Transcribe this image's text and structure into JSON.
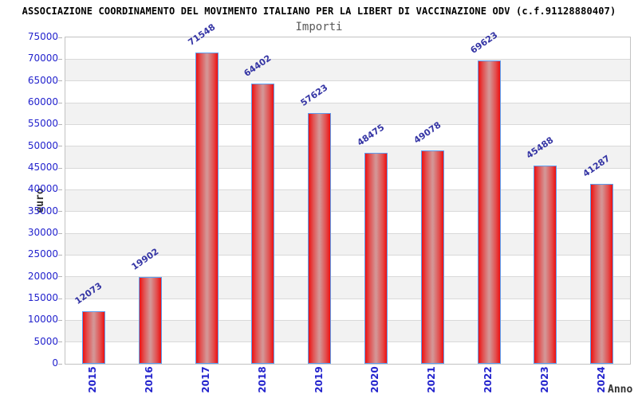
{
  "header": {
    "title": "ASSOCIAZIONE COORDINAMENTO DEL MOVIMENTO ITALIANO PER LA LIBERT DI VACCINAZIONE ODV (c.f.91128880407)"
  },
  "chart_data": {
    "type": "bar",
    "title": "Importi",
    "categories": [
      "2015",
      "2016",
      "2017",
      "2018",
      "2019",
      "2020",
      "2021",
      "2022",
      "2023",
      "2024"
    ],
    "values": [
      12073,
      19902,
      71548,
      64402,
      57623,
      48475,
      49078,
      69623,
      45488,
      41287
    ],
    "xlabel": "Anno",
    "ylabel": "euro",
    "ylim": [
      0,
      75000
    ],
    "ytick_step": 5000,
    "grid": true,
    "legend_position": "none",
    "colors": {
      "bar_edge": "#ee1010",
      "bar_center": "#d49595",
      "bar_border": "#5d9ef0",
      "axis_tick_label": "#2323cd",
      "value_label": "#3434a4",
      "band_light": "#ffffff",
      "band_shade": "#f2f2f2",
      "gridline": "#d9d9d9",
      "plot_border": "#c2c2c2",
      "title": "#000000",
      "subtitle": "#595959"
    }
  }
}
